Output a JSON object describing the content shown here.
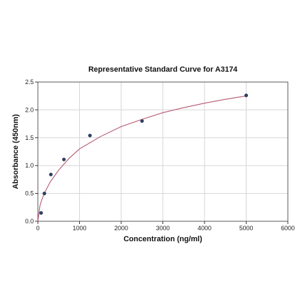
{
  "chart_data": {
    "type": "scatter",
    "title": "Representative Standard Curve for A3174",
    "xlabel": "Concentration (ng/ml)",
    "ylabel": "Absorbance (450nm)",
    "xlim": [
      0,
      6000
    ],
    "ylim": [
      0,
      2.5
    ],
    "x_ticks": [
      "0",
      "1000",
      "2000",
      "3000",
      "4000",
      "5000",
      "6000"
    ],
    "y_ticks": [
      "0.0",
      "0.5",
      "1.0",
      "1.5",
      "2.0",
      "2.5"
    ],
    "grid": true,
    "series": [
      {
        "x": [
          78,
          156,
          312,
          625,
          1250,
          2500,
          5000
        ],
        "y": [
          0.15,
          0.5,
          0.84,
          1.11,
          1.54,
          1.8,
          2.26
        ]
      }
    ],
    "fit_curve": {
      "type": "power",
      "x": [
        0,
        50,
        100,
        200,
        300,
        500,
        750,
        1000,
        1500,
        2000,
        2500,
        3000,
        3500,
        4000,
        4500,
        5000
      ],
      "y": [
        0.0,
        0.28,
        0.4,
        0.57,
        0.71,
        0.92,
        1.13,
        1.3,
        1.52,
        1.7,
        1.83,
        1.95,
        2.04,
        2.12,
        2.19,
        2.25
      ]
    },
    "colors": {
      "points": "#2e3f63",
      "curve": "#b5566e",
      "grid": "#d6d6d6",
      "frame": "#555555"
    }
  }
}
